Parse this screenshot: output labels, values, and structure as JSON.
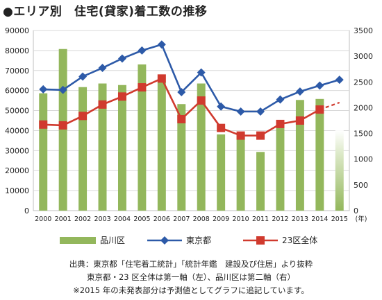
{
  "title": "●エリア別　住宅(貸家)着工数の推移",
  "chart_data": {
    "type": "bar+line",
    "categories": [
      "2000",
      "2001",
      "2002",
      "2003",
      "2004",
      "2005",
      "2006",
      "2007",
      "2008",
      "2009",
      "2010",
      "2011",
      "2012",
      "2013",
      "2014",
      "2015"
    ],
    "x_unit_label": "(年)",
    "left_axis": {
      "min": 0,
      "max": 90000,
      "ticks": [
        0,
        10000,
        20000,
        30000,
        40000,
        50000,
        60000,
        70000,
        80000,
        90000
      ]
    },
    "right_axis": {
      "min": 0,
      "max": 3500,
      "ticks": [
        0,
        500,
        1000,
        1500,
        2000,
        2500,
        3000,
        3500
      ]
    },
    "grid": true,
    "legend_position": "bottom",
    "series": [
      {
        "name": "品川区",
        "type": "bar",
        "axis": "right",
        "color": "#93b75c",
        "values": [
          2280,
          3140,
          2400,
          2470,
          2440,
          2840,
          2500,
          2070,
          2470,
          1480,
          1510,
          1140,
          1610,
          2150,
          2170,
          1560
        ],
        "estimated": [
          false,
          false,
          false,
          false,
          false,
          false,
          false,
          false,
          false,
          false,
          false,
          false,
          false,
          false,
          false,
          true
        ]
      },
      {
        "name": "東京都",
        "type": "line",
        "axis": "left",
        "color": "#2d5aa8",
        "marker": "diamond",
        "values": [
          60600,
          60300,
          67000,
          71300,
          76000,
          80000,
          83000,
          59200,
          69000,
          52000,
          49500,
          49500,
          55500,
          59500,
          62500,
          65400
        ]
      },
      {
        "name": "23区全体",
        "type": "line",
        "axis": "left",
        "color": "#d03a2e",
        "marker": "square",
        "values": [
          43000,
          42600,
          47300,
          53000,
          57000,
          61600,
          66000,
          45700,
          55000,
          41300,
          37500,
          37500,
          43300,
          45000,
          50500,
          54000
        ],
        "estimated_from_index": 14
      }
    ]
  },
  "legend": [
    "品川区",
    "東京都",
    "23区全体"
  ],
  "notes": [
    "出典：東京都「住宅着工統計」「統計年鑑　建設及び住居」より抜粋",
    "東京都・23 区全体は第一軸（左）、品川区は第二軸（右）",
    "※2015 年の未発表部分は予測値としてグラフに追記しています。"
  ]
}
